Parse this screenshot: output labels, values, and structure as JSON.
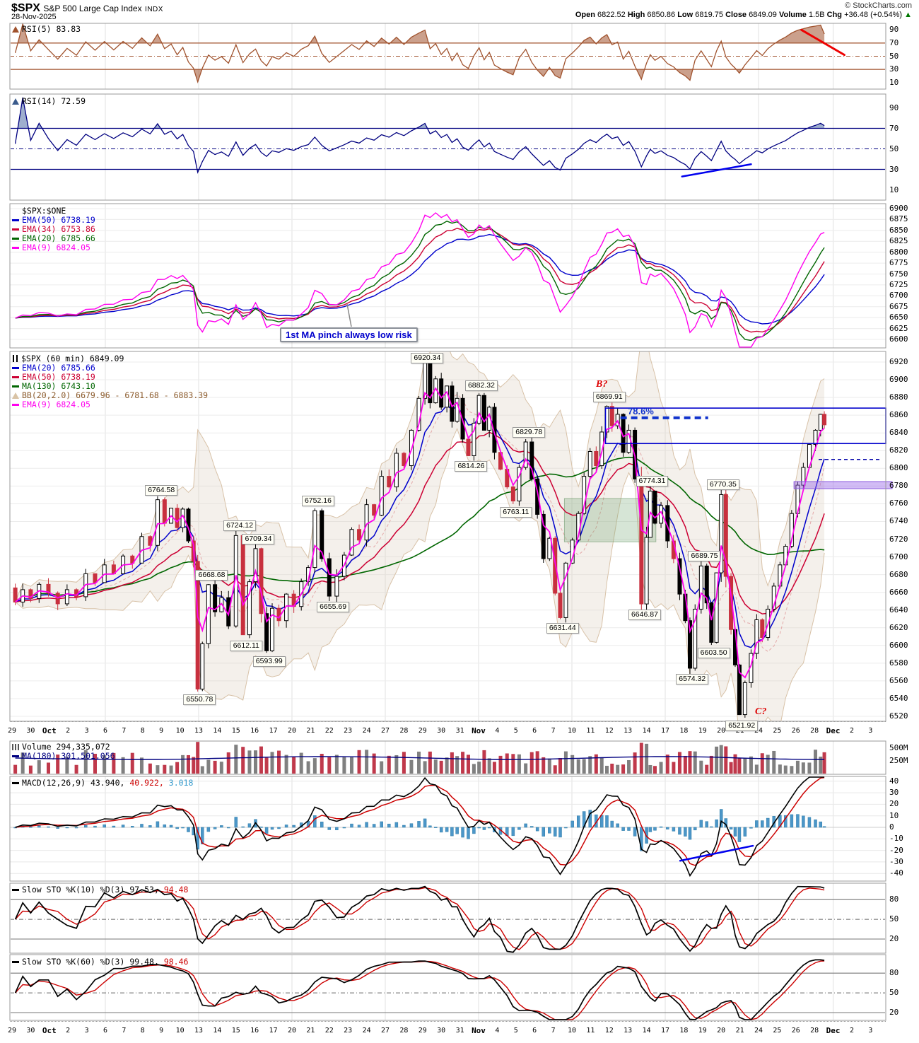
{
  "header": {
    "symbol": "$SPX",
    "name": "S&P 500 Large Cap Index",
    "exchange": "INDX",
    "date": "28-Nov-2025",
    "copyright": "© StockCharts.com",
    "quote": {
      "open_label": "Open",
      "open": "6822.52",
      "high_label": "High",
      "high": "6850.86",
      "low_label": "Low",
      "low": "6819.75",
      "close_label": "Close",
      "close": "6849.09",
      "volume_label": "Volume",
      "volume": "1.5B",
      "chg_label": "Chg",
      "chg": "+36.48 (+0.54%)",
      "arrow": "▲"
    }
  },
  "chart_data": {
    "type": "multi-panel-stock-chart",
    "symbol": "$SPX",
    "timeframe": "60 min",
    "last_close": 6849.09,
    "date_labels": [
      "29",
      "30",
      "Oct",
      "2",
      "3",
      "6",
      "7",
      "8",
      "9",
      "10",
      "13",
      "14",
      "15",
      "16",
      "17",
      "20",
      "21",
      "22",
      "23",
      "24",
      "27",
      "28",
      "29",
      "30",
      "31",
      "Nov",
      "4",
      "5",
      "6",
      "7",
      "10",
      "11",
      "12",
      "13",
      "14",
      "17",
      "18",
      "19",
      "20",
      "21",
      "24",
      "25",
      "26",
      "28",
      "Dec",
      "2",
      "3"
    ],
    "bold_date_indices": [
      2,
      25,
      44
    ],
    "week_gridline_indices": [
      5,
      10,
      15,
      20,
      25,
      30,
      35,
      40,
      44
    ],
    "legends": {
      "rsi5": "RSI(5) 83.83",
      "rsi14": "RSI(14) 72.59",
      "ema_title": "$SPX:$ONE",
      "ema_rows": [
        {
          "t": "EMA(50) 6738.19",
          "c": "#0000CC"
        },
        {
          "t": "EMA(34) 6753.86",
          "c": "#CC0033"
        },
        {
          "t": "EMA(20) 6785.66",
          "c": "#006600"
        },
        {
          "t": "EMA(9) 6824.05",
          "c": "#FF00EE"
        }
      ],
      "main_title": "$SPX (60 min) 6849.09",
      "main_rows": [
        {
          "t": "EMA(20) 6785.66",
          "c": "#0000CC"
        },
        {
          "t": "EMA(50) 6738.19",
          "c": "#CC0033"
        },
        {
          "t": "MA(130) 6743.10",
          "c": "#006600"
        },
        {
          "t": "BB(20,2.0) 6679.96 - 6781.68 - 6883.39",
          "c": "#C9A07A",
          "icon": "band"
        },
        {
          "t": "EMA(9) 6824.05",
          "c": "#FF00EE"
        }
      ],
      "volume_main": "Volume 294,335,072",
      "volume_ma": "MA(180) 301,501,056",
      "macd_name": "MACD(12,26,9)",
      "macd_v1": "43.940,",
      "macd_v2": "40.922,",
      "macd_v3": "3.018",
      "sto10_name": "Slow STO %K(10) %D(3)",
      "sto10_v1": "97.53,",
      "sto10_v2": "94.48",
      "sto60_name": "Slow STO %K(60) %D(3)",
      "sto60_v1": "99.48,",
      "sto60_v2": "98.46",
      "ma_pinch_note": "1st MA pinch always low risk",
      "fib_label": "78.6%",
      "b_label": "B?",
      "c_label": "C?"
    },
    "axes": {
      "rsi_ticks": [
        90,
        70,
        50,
        30,
        10
      ],
      "ema_ticks": [
        6900,
        6875,
        6850,
        6825,
        6800,
        6775,
        6750,
        6725,
        6700,
        6675,
        6650,
        6625,
        6600
      ],
      "main_ticks": [
        6920,
        6900,
        6880,
        6860,
        6840,
        6820,
        6800,
        6780,
        6760,
        6740,
        6720,
        6700,
        6680,
        6660,
        6640,
        6620,
        6600,
        6580,
        6560,
        6540,
        6520
      ],
      "vol_ticks": [
        "500M",
        "250M"
      ],
      "macd_ticks": [
        40,
        30,
        20,
        10,
        0,
        -10,
        -20,
        -30,
        -40
      ],
      "sto_ticks": [
        80,
        50,
        20
      ]
    },
    "indicators": {
      "rsi5": {
        "value": 83.83,
        "thresholds": [
          70,
          50,
          30
        ],
        "color": "#A0522D"
      },
      "rsi14": {
        "value": 72.59,
        "thresholds": [
          70,
          50,
          30
        ],
        "color": "#000080"
      },
      "macd": {
        "line": 43.94,
        "signal": 40.922,
        "hist": 3.018
      },
      "sto10": {
        "k": 97.53,
        "d": 94.48
      },
      "sto60": {
        "k": 99.48,
        "d": 98.46
      },
      "volume": {
        "current": "294,335,072",
        "ma180": "301,501,056"
      }
    },
    "price_waypoints": [
      [
        0,
        6665
      ],
      [
        0.35,
        6649
      ],
      [
        0.8,
        6663
      ],
      [
        1.2,
        6653
      ],
      [
        1.7,
        6669
      ],
      [
        2.2,
        6659
      ],
      [
        2.7,
        6647
      ],
      [
        3.2,
        6663
      ],
      [
        3.7,
        6655
      ],
      [
        4.2,
        6681
      ],
      [
        4.7,
        6671
      ],
      [
        5.2,
        6691
      ],
      [
        5.7,
        6681
      ],
      [
        6.2,
        6701
      ],
      [
        6.7,
        6693
      ],
      [
        7.2,
        6723
      ],
      [
        7.6,
        6713
      ],
      [
        8.0,
        6764.58
      ],
      [
        8.35,
        6738
      ],
      [
        8.7,
        6755
      ],
      [
        9.0,
        6733
      ],
      [
        9.3,
        6754
      ],
      [
        9.6,
        6718
      ],
      [
        9.85,
        6695
      ],
      [
        10.05,
        6550.78
      ],
      [
        10.35,
        6602
      ],
      [
        10.7,
        6668.68
      ],
      [
        11.05,
        6638
      ],
      [
        11.4,
        6654
      ],
      [
        11.8,
        6622
      ],
      [
        12.2,
        6724.12
      ],
      [
        12.55,
        6612.11
      ],
      [
        12.9,
        6672
      ],
      [
        13.2,
        6709.34
      ],
      [
        13.5,
        6636
      ],
      [
        13.78,
        6593.99
      ],
      [
        14.1,
        6642
      ],
      [
        14.5,
        6628
      ],
      [
        14.9,
        6658
      ],
      [
        15.3,
        6644
      ],
      [
        15.7,
        6672
      ],
      [
        16.05,
        6688
      ],
      [
        16.4,
        6752.16
      ],
      [
        16.8,
        6698
      ],
      [
        17.2,
        6655.69
      ],
      [
        17.6,
        6678
      ],
      [
        18.0,
        6702
      ],
      [
        18.4,
        6731
      ],
      [
        18.8,
        6719
      ],
      [
        19.2,
        6759
      ],
      [
        19.6,
        6747
      ],
      [
        20.0,
        6791
      ],
      [
        20.4,
        6779
      ],
      [
        20.8,
        6817
      ],
      [
        21.2,
        6803
      ],
      [
        21.6,
        6843
      ],
      [
        22.0,
        6879
      ],
      [
        22.25,
        6920.34
      ],
      [
        22.55,
        6874
      ],
      [
        22.85,
        6901
      ],
      [
        23.15,
        6869
      ],
      [
        23.45,
        6893
      ],
      [
        23.7,
        6853
      ],
      [
        24.0,
        6879
      ],
      [
        24.3,
        6833
      ],
      [
        24.6,
        6814.26
      ],
      [
        24.9,
        6851
      ],
      [
        25.15,
        6882.32
      ],
      [
        25.45,
        6843
      ],
      [
        25.7,
        6869
      ],
      [
        26.0,
        6818
      ],
      [
        26.35,
        6799
      ],
      [
        26.7,
        6779
      ],
      [
        27.0,
        6763.11
      ],
      [
        27.35,
        6801
      ],
      [
        27.7,
        6829.78
      ],
      [
        28.0,
        6788
      ],
      [
        28.3,
        6748
      ],
      [
        28.65,
        6698
      ],
      [
        28.95,
        6721
      ],
      [
        29.25,
        6659
      ],
      [
        29.5,
        6631.44
      ],
      [
        29.85,
        6693
      ],
      [
        30.2,
        6719
      ],
      [
        30.5,
        6749
      ],
      [
        30.8,
        6791
      ],
      [
        31.15,
        6819
      ],
      [
        31.45,
        6803
      ],
      [
        31.75,
        6841
      ],
      [
        32.0,
        6869.91
      ],
      [
        32.3,
        6848
      ],
      [
        32.6,
        6861
      ],
      [
        32.9,
        6818
      ],
      [
        33.2,
        6843
      ],
      [
        33.55,
        6788
      ],
      [
        33.9,
        6646.87
      ],
      [
        34.1,
        6722
      ],
      [
        34.3,
        6774.31
      ],
      [
        34.6,
        6738
      ],
      [
        34.95,
        6758
      ],
      [
        35.3,
        6718
      ],
      [
        35.6,
        6698
      ],
      [
        35.95,
        6658
      ],
      [
        36.2,
        6628
      ],
      [
        36.45,
        6574.32
      ],
      [
        36.75,
        6641
      ],
      [
        37.1,
        6689.75
      ],
      [
        37.35,
        6648
      ],
      [
        37.6,
        6603.5
      ],
      [
        37.9,
        6682
      ],
      [
        38.1,
        6770.35
      ],
      [
        38.4,
        6678
      ],
      [
        38.65,
        6618
      ],
      [
        38.85,
        6578
      ],
      [
        39.1,
        6521.92
      ],
      [
        39.45,
        6558
      ],
      [
        39.75,
        6591
      ],
      [
        40.05,
        6629
      ],
      [
        40.35,
        6609
      ],
      [
        40.65,
        6641
      ],
      [
        41.0,
        6667
      ],
      [
        41.3,
        6691
      ],
      [
        41.6,
        6712
      ],
      [
        41.95,
        6749
      ],
      [
        42.25,
        6781
      ],
      [
        42.55,
        6801
      ],
      [
        42.9,
        6827
      ],
      [
        43.2,
        6843
      ],
      [
        43.45,
        6861
      ],
      [
        43.6,
        6849.09
      ]
    ],
    "price_labels": [
      {
        "t": "6764.58",
        "d": 8.0,
        "p": 6764.58,
        "s": "a"
      },
      {
        "t": "6550.78",
        "d": 10.05,
        "p": 6550.78,
        "s": "b"
      },
      {
        "t": "6668.68",
        "d": 10.7,
        "p": 6668.68,
        "s": "a"
      },
      {
        "t": "6724.12",
        "d": 12.2,
        "p": 6724.12,
        "s": "a"
      },
      {
        "t": "6612.11",
        "d": 12.55,
        "p": 6612.11,
        "s": "b"
      },
      {
        "t": "6709.34",
        "d": 13.2,
        "p": 6709.34,
        "s": "a"
      },
      {
        "t": "6593.99",
        "d": 13.78,
        "p": 6593.99,
        "s": "b"
      },
      {
        "t": "6752.16",
        "d": 16.4,
        "p": 6752.16,
        "s": "a"
      },
      {
        "t": "6655.69",
        "d": 17.2,
        "p": 6655.69,
        "s": "b"
      },
      {
        "t": "6920.34",
        "d": 22.25,
        "p": 6920.34,
        "s": "a"
      },
      {
        "t": "6814.26",
        "d": 24.6,
        "p": 6814.26,
        "s": "b"
      },
      {
        "t": "6882.32",
        "d": 25.15,
        "p": 6882.32,
        "s": "a"
      },
      {
        "t": "6763.11",
        "d": 27.0,
        "p": 6763.11,
        "s": "b"
      },
      {
        "t": "6829.78",
        "d": 27.7,
        "p": 6829.78,
        "s": "a"
      },
      {
        "t": "6631.44",
        "d": 29.5,
        "p": 6631.44,
        "s": "b"
      },
      {
        "t": "6869.91",
        "d": 32.0,
        "p": 6869.91,
        "s": "a"
      },
      {
        "t": "6646.87",
        "d": 33.9,
        "p": 6646.87,
        "s": "b"
      },
      {
        "t": "6774.31",
        "d": 34.3,
        "p": 6774.31,
        "s": "a"
      },
      {
        "t": "6574.32",
        "d": 36.45,
        "p": 6574.32,
        "s": "b"
      },
      {
        "t": "6689.75",
        "d": 37.1,
        "p": 6689.75,
        "s": "a"
      },
      {
        "t": "6603.50",
        "d": 37.6,
        "p": 6603.5,
        "s": "b"
      },
      {
        "t": "6770.35",
        "d": 38.1,
        "p": 6770.35,
        "s": "a"
      },
      {
        "t": "6521.92",
        "d": 39.1,
        "p": 6521.92,
        "s": "b"
      }
    ],
    "annotations": {
      "fib_line": {
        "price": 6857,
        "d1": 32.6,
        "d2": 37.3,
        "color": "#1133CC"
      },
      "blue_rect": {
        "p1": 6828,
        "p2": 6868,
        "d1": 31.8,
        "color": "#0000CC"
      },
      "right_dash": {
        "price": 6810,
        "color": "#0000AA"
      },
      "purple_band": {
        "price": 6781,
        "d1": 41.9,
        "color": "#8855DD"
      },
      "green_box": {
        "d1": 29.6,
        "d2": 34.5,
        "p1": 6717,
        "p2": 6766
      },
      "rsi5_trendline": {
        "from": [
          42.3,
          90
        ],
        "to": [
          44.6,
          52
        ],
        "color": "#EE0000"
      },
      "rsi14_trendline": {
        "from": [
          35.9,
          23
        ],
        "to": [
          39.6,
          35
        ],
        "color": "#0000EE"
      },
      "macd_trendline": {
        "from": [
          35.8,
          -29
        ],
        "to": [
          39.7,
          -16
        ],
        "color": "#0000EE"
      }
    }
  }
}
